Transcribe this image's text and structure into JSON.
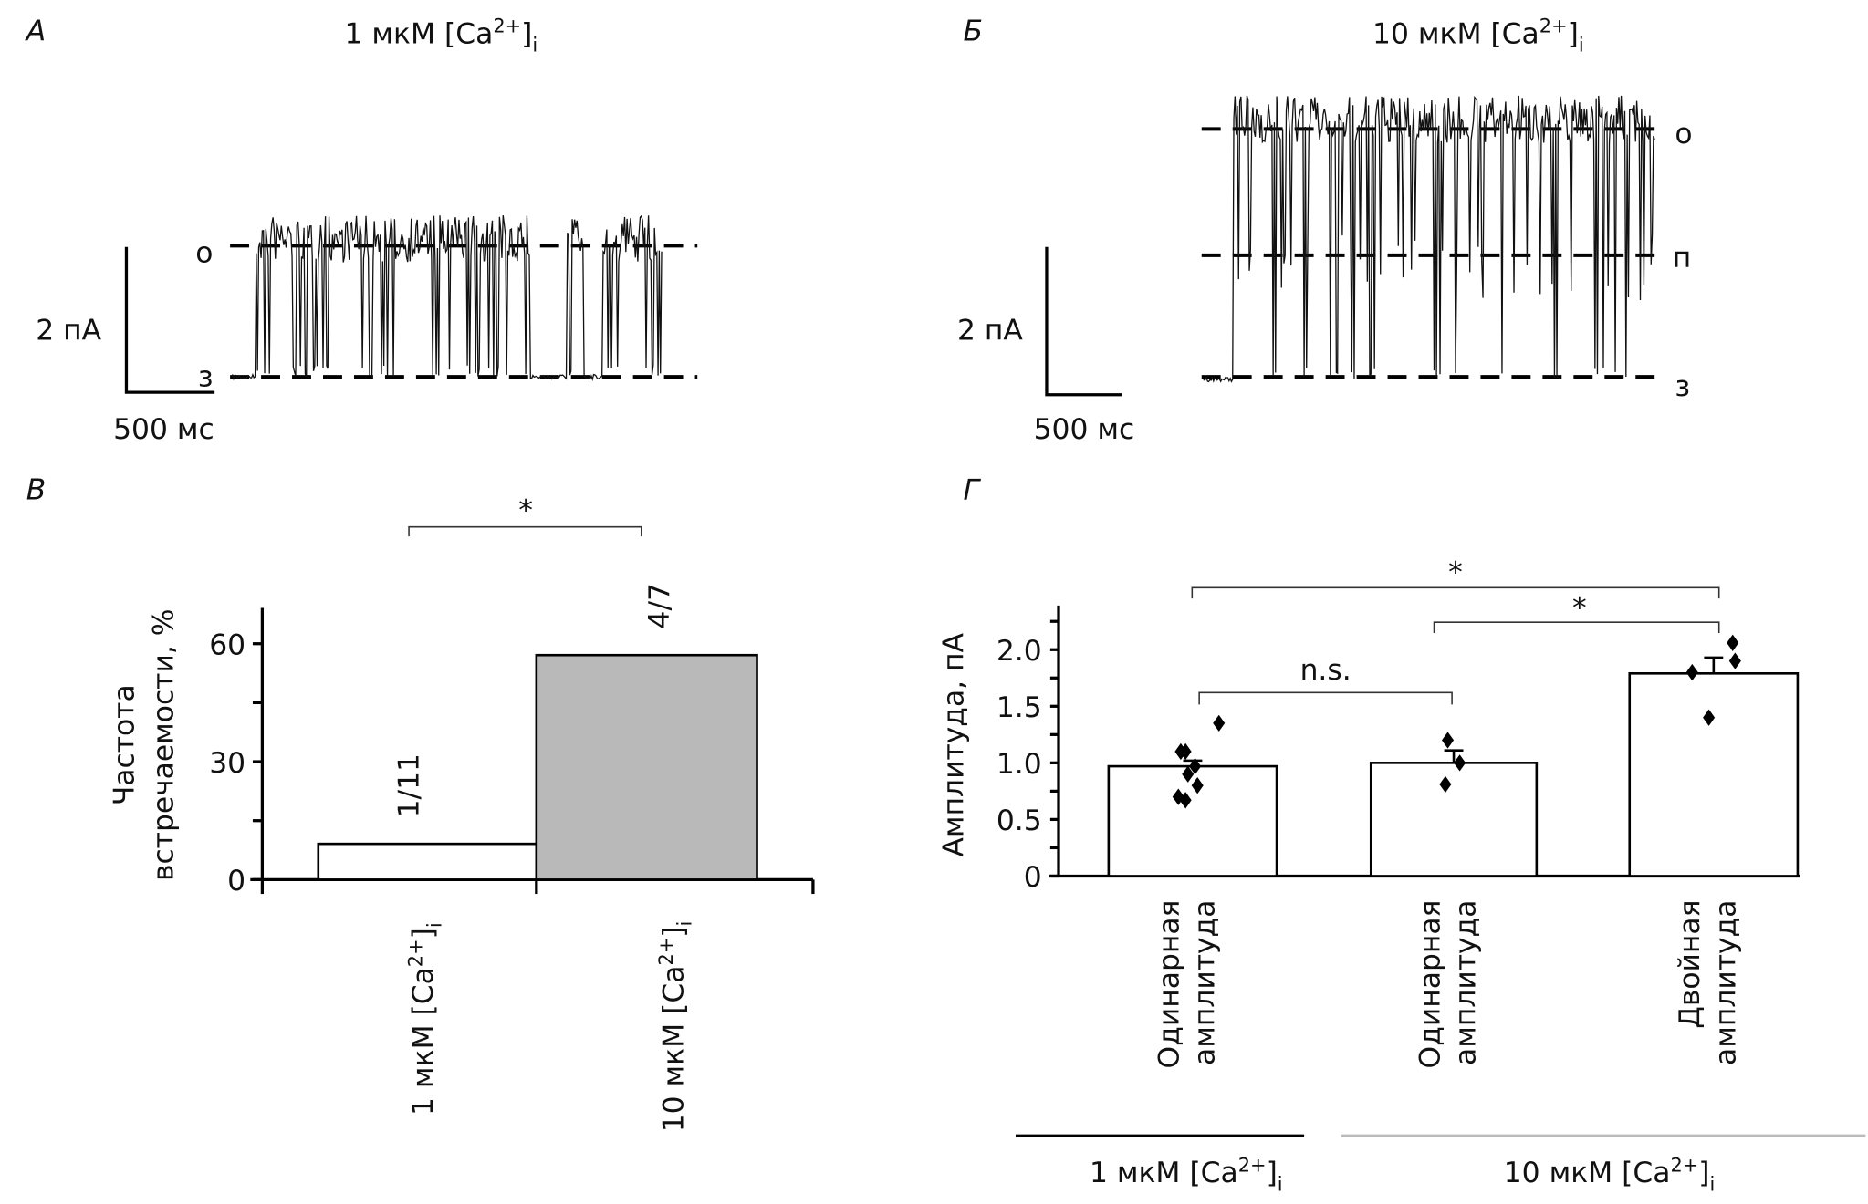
{
  "conc": {
    "low": {
      "pre": "1 мкМ [Ca",
      "sup": "2+",
      "post": "]",
      "sub": "i"
    },
    "high": {
      "pre": "10 мкМ [Ca",
      "sup": "2+",
      "post": "]",
      "sub": "i"
    }
  },
  "panel_a": {
    "letter": "А",
    "scale_y": "2 пА",
    "scale_x": "500 мс",
    "level_open": "о",
    "level_closed": "з"
  },
  "panel_b": {
    "letter": "Б",
    "scale_y": "2 пА",
    "scale_x": "500 мс",
    "level_open": "о",
    "level_sub": "п",
    "level_closed": "з"
  },
  "chart_data": [
    {
      "type": "bar",
      "panel": "В",
      "ylabel_line1": "Частота",
      "ylabel_line2": "встречаемости, %",
      "ylim": [
        0,
        70
      ],
      "yticks": [
        "0",
        "30",
        "60"
      ],
      "categories": [
        "1 мкМ [Ca2+]i",
        "10 мкМ [Ca2+]i"
      ],
      "values": [
        9.1,
        57.1
      ],
      "bar_labels": [
        "1/11",
        "4/7"
      ],
      "colors": [
        "#ffffff",
        "#b9b9b9"
      ],
      "significance": "*"
    },
    {
      "type": "bar",
      "panel": "Г",
      "ylabel": "Амплитуда, пА",
      "ylim": [
        0,
        2.4
      ],
      "yticks": [
        "0",
        "0.5",
        "1.0",
        "1.5",
        "2.0"
      ],
      "categories": [
        {
          "line1": "Одинарная",
          "line2": "амплитуда"
        },
        {
          "line1": "Одинарная",
          "line2": "амплитуда"
        },
        {
          "line1": "Двойная",
          "line2": "амплитуда"
        }
      ],
      "values": [
        0.97,
        1.0,
        1.79
      ],
      "errors": [
        0.05,
        0.11,
        0.14
      ],
      "points": [
        [
          1.1,
          1.1,
          1.35,
          0.97,
          0.9,
          0.8,
          0.7,
          0.67
        ],
        [
          1.2,
          1.0,
          0.81
        ],
        [
          1.8,
          2.06,
          1.9,
          1.4
        ]
      ],
      "comparisons": [
        {
          "pair": [
            1,
            2
          ],
          "label": "n.s."
        },
        {
          "pair": [
            1,
            3
          ],
          "label": "*"
        },
        {
          "pair": [
            2,
            3
          ],
          "label": "*"
        }
      ],
      "groups": [
        "1 мкМ [Ca2+]i",
        "10 мкМ [Ca2+]i"
      ]
    }
  ]
}
